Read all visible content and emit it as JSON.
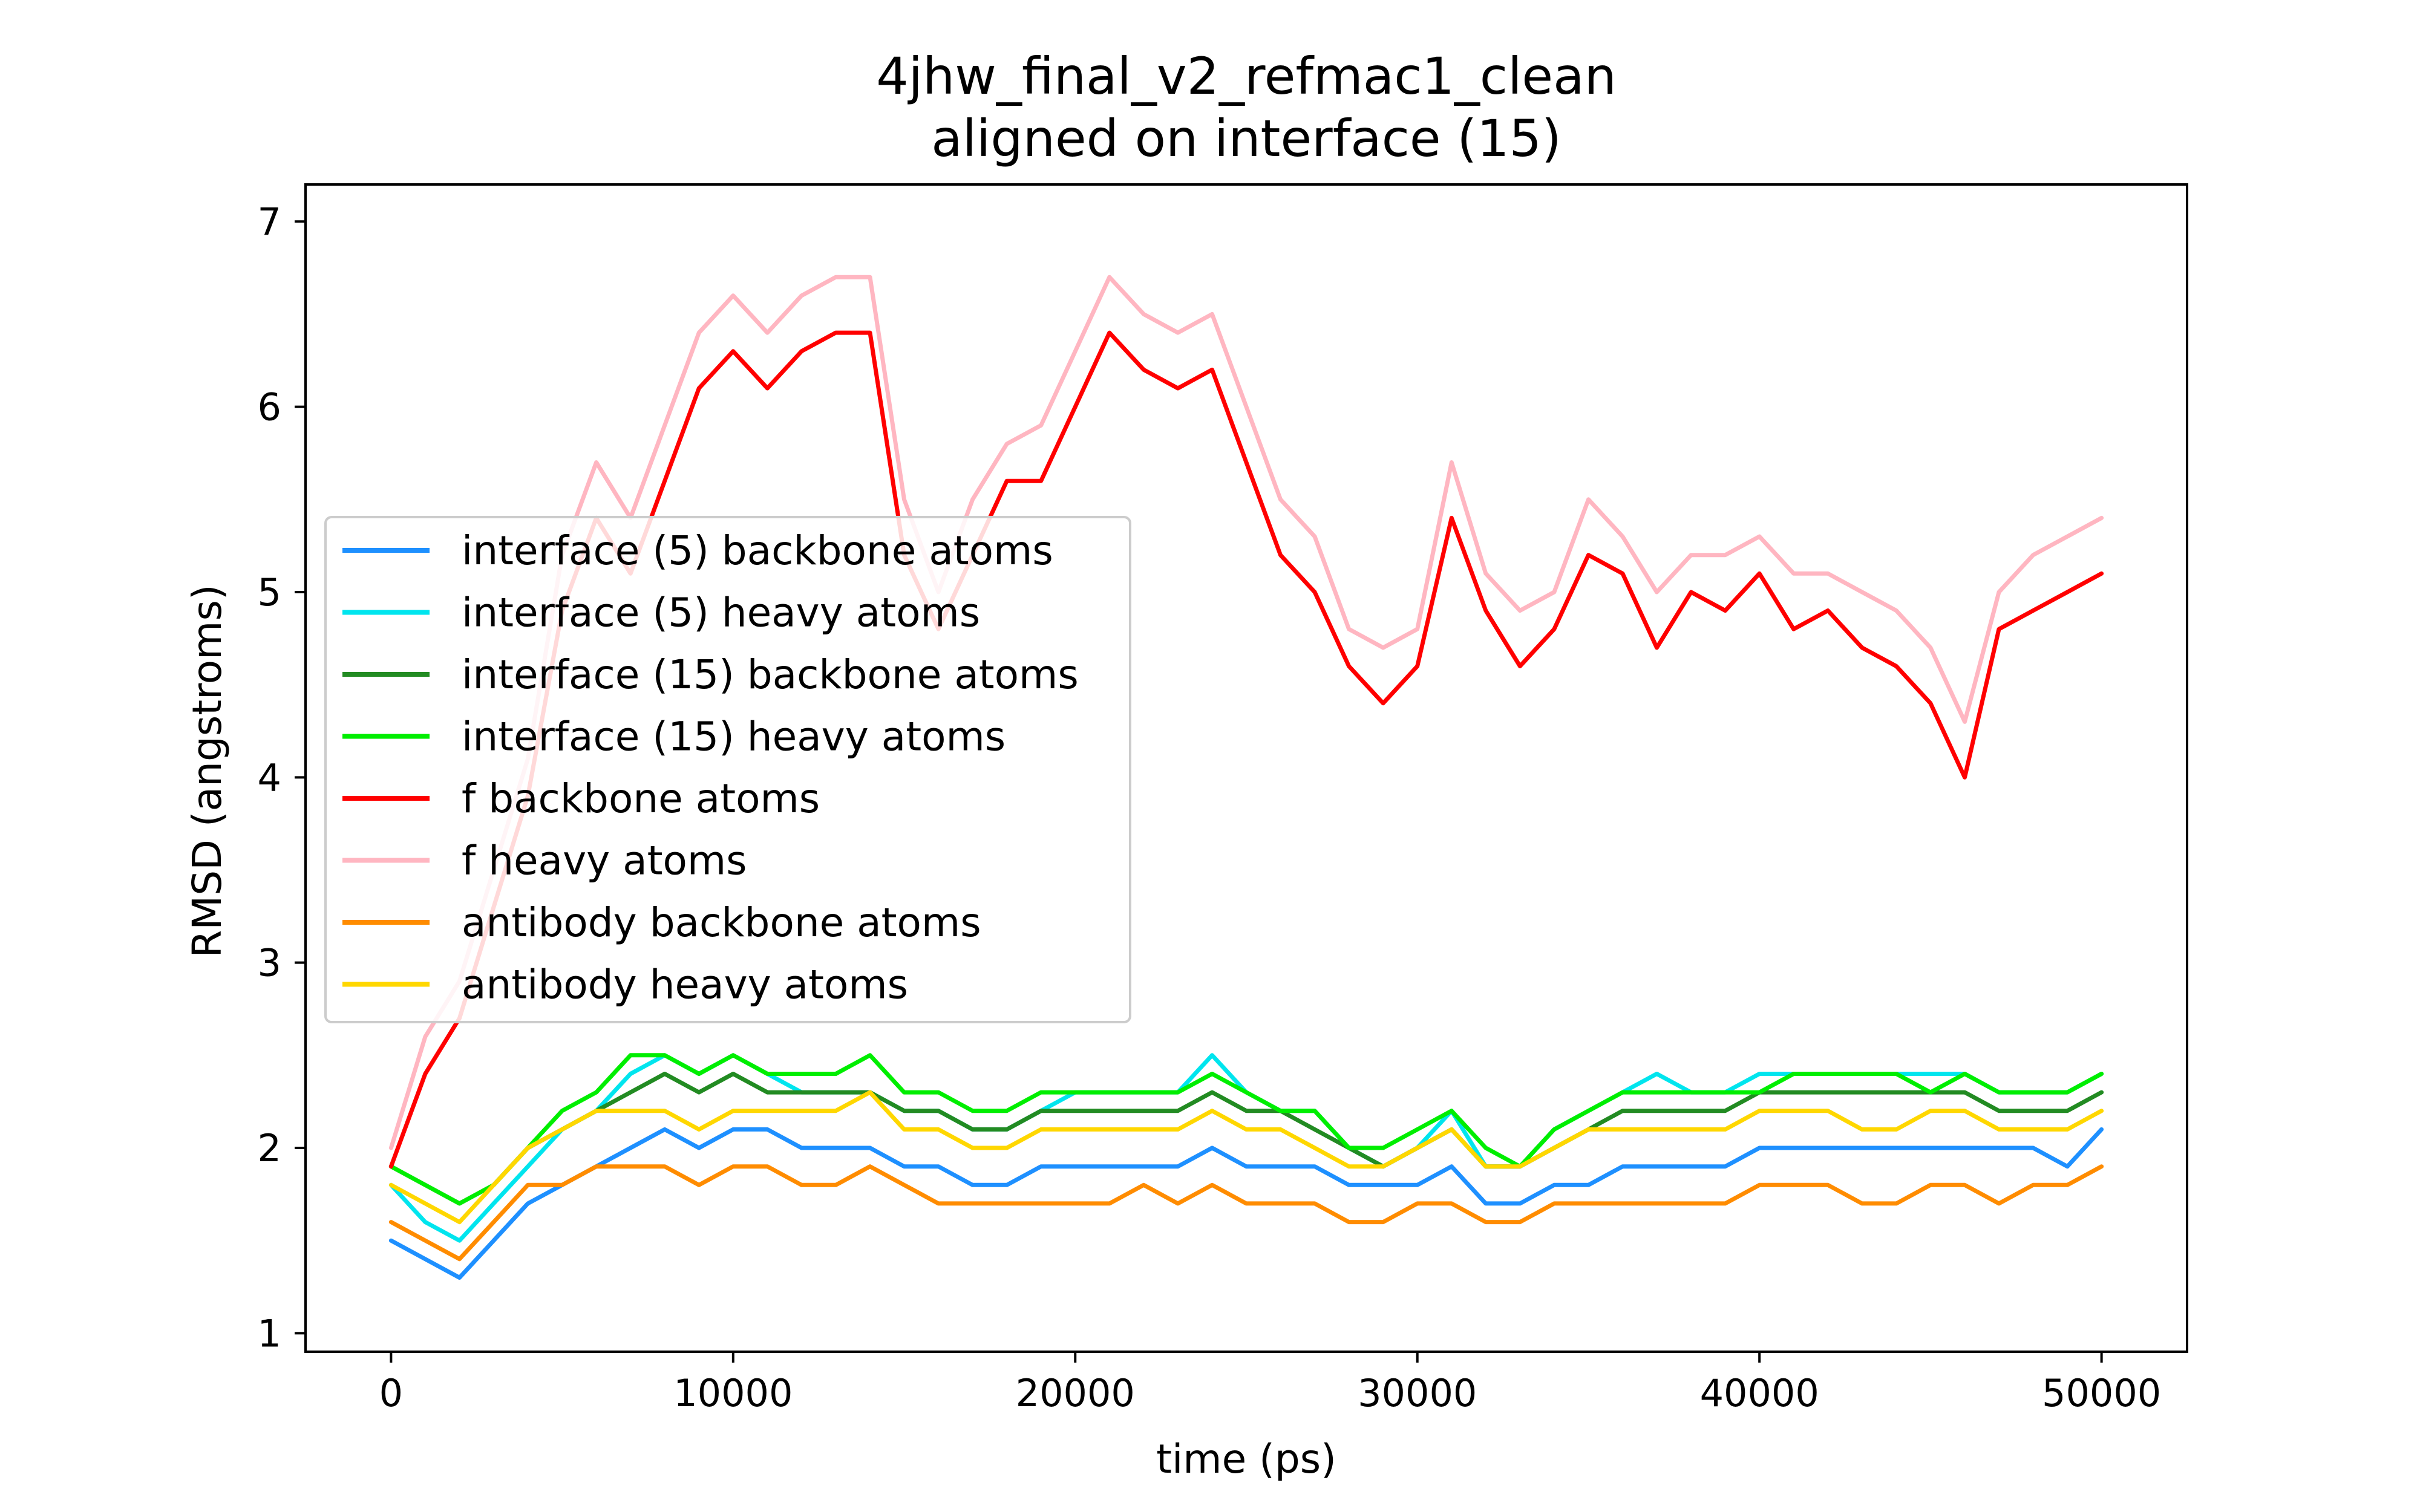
{
  "chart_data": {
    "type": "line",
    "title": "4jhw_final_v2_refmac1_clean",
    "subtitle": "aligned on interface (15)",
    "xlabel": "time (ps)",
    "ylabel": "RMSD (angstroms)",
    "xlim": [
      -2500,
      52500
    ],
    "ylim": [
      0.9,
      7.2
    ],
    "xticks": [
      0,
      10000,
      20000,
      30000,
      40000,
      50000
    ],
    "yticks": [
      1,
      2,
      3,
      4,
      5,
      6,
      7
    ],
    "grid": false,
    "legend_position": "center-left",
    "x": [
      0,
      1000,
      2000,
      3000,
      4000,
      5000,
      6000,
      7000,
      8000,
      9000,
      10000,
      11000,
      12000,
      13000,
      14000,
      15000,
      16000,
      17000,
      18000,
      19000,
      20000,
      21000,
      22000,
      23000,
      24000,
      25000,
      26000,
      27000,
      28000,
      29000,
      30000,
      31000,
      32000,
      33000,
      34000,
      35000,
      36000,
      37000,
      38000,
      39000,
      40000,
      41000,
      42000,
      43000,
      44000,
      45000,
      46000,
      47000,
      48000,
      49000,
      50000
    ],
    "series": [
      {
        "name": "interface (5) backbone atoms",
        "color": "#1e90ff",
        "values": [
          1.5,
          1.4,
          1.3,
          1.5,
          1.7,
          1.8,
          1.9,
          2.0,
          2.1,
          2.0,
          2.1,
          2.1,
          2.0,
          2.0,
          2.0,
          1.9,
          1.9,
          1.8,
          1.8,
          1.9,
          1.9,
          1.9,
          1.9,
          1.9,
          2.0,
          1.9,
          1.9,
          1.9,
          1.8,
          1.8,
          1.8,
          1.9,
          1.7,
          1.7,
          1.8,
          1.8,
          1.9,
          1.9,
          1.9,
          1.9,
          2.0,
          2.0,
          2.0,
          2.0,
          2.0,
          2.0,
          2.0,
          2.0,
          2.0,
          1.9,
          2.1
        ]
      },
      {
        "name": "interface (5) heavy atoms",
        "color": "#00e5ee",
        "values": [
          1.8,
          1.6,
          1.5,
          1.7,
          1.9,
          2.1,
          2.2,
          2.4,
          2.5,
          2.4,
          2.5,
          2.4,
          2.3,
          2.3,
          2.3,
          2.2,
          2.2,
          2.1,
          2.1,
          2.2,
          2.3,
          2.3,
          2.3,
          2.3,
          2.5,
          2.3,
          2.2,
          2.2,
          2.0,
          1.9,
          2.0,
          2.2,
          1.9,
          1.9,
          2.1,
          2.2,
          2.3,
          2.4,
          2.3,
          2.3,
          2.4,
          2.4,
          2.4,
          2.4,
          2.4,
          2.4,
          2.4,
          2.3,
          2.3,
          2.3,
          2.4
        ]
      },
      {
        "name": "interface (15) backbone atoms",
        "color": "#228b22",
        "values": [
          1.9,
          1.8,
          1.7,
          1.8,
          2.0,
          2.1,
          2.2,
          2.3,
          2.4,
          2.3,
          2.4,
          2.3,
          2.3,
          2.3,
          2.3,
          2.2,
          2.2,
          2.1,
          2.1,
          2.2,
          2.2,
          2.2,
          2.2,
          2.2,
          2.3,
          2.2,
          2.2,
          2.1,
          2.0,
          1.9,
          2.0,
          2.1,
          1.9,
          1.9,
          2.0,
          2.1,
          2.2,
          2.2,
          2.2,
          2.2,
          2.3,
          2.3,
          2.3,
          2.3,
          2.3,
          2.3,
          2.3,
          2.2,
          2.2,
          2.2,
          2.3
        ]
      },
      {
        "name": "interface (15) heavy atoms",
        "color": "#00ee00",
        "values": [
          1.9,
          1.8,
          1.7,
          1.8,
          2.0,
          2.2,
          2.3,
          2.5,
          2.5,
          2.4,
          2.5,
          2.4,
          2.4,
          2.4,
          2.5,
          2.3,
          2.3,
          2.2,
          2.2,
          2.3,
          2.3,
          2.3,
          2.3,
          2.3,
          2.4,
          2.3,
          2.2,
          2.2,
          2.0,
          2.0,
          2.1,
          2.2,
          2.0,
          1.9,
          2.1,
          2.2,
          2.3,
          2.3,
          2.3,
          2.3,
          2.3,
          2.4,
          2.4,
          2.4,
          2.4,
          2.3,
          2.4,
          2.3,
          2.3,
          2.3,
          2.4
        ]
      },
      {
        "name": "f backbone atoms",
        "color": "#ff0000",
        "values": [
          1.9,
          2.4,
          2.7,
          3.3,
          3.9,
          4.9,
          5.4,
          5.1,
          5.6,
          6.1,
          6.3,
          6.1,
          6.3,
          6.4,
          6.4,
          5.2,
          4.8,
          5.2,
          5.6,
          5.6,
          6.0,
          6.4,
          6.2,
          6.1,
          6.2,
          5.7,
          5.2,
          5.0,
          4.6,
          4.4,
          4.6,
          5.4,
          4.9,
          4.6,
          4.8,
          5.2,
          5.1,
          4.7,
          5.0,
          4.9,
          5.1,
          4.8,
          4.9,
          4.7,
          4.6,
          4.4,
          4.0,
          4.8,
          4.9,
          5.0,
          5.1
        ]
      },
      {
        "name": "f heavy atoms",
        "color": "#ffb6c1",
        "values": [
          2.0,
          2.6,
          2.9,
          3.5,
          4.1,
          5.2,
          5.7,
          5.4,
          5.9,
          6.4,
          6.6,
          6.4,
          6.6,
          6.7,
          6.7,
          5.5,
          5.0,
          5.5,
          5.8,
          5.9,
          6.3,
          6.7,
          6.5,
          6.4,
          6.5,
          6.0,
          5.5,
          5.3,
          4.8,
          4.7,
          4.8,
          5.7,
          5.1,
          4.9,
          5.0,
          5.5,
          5.3,
          5.0,
          5.2,
          5.2,
          5.3,
          5.1,
          5.1,
          5.0,
          4.9,
          4.7,
          4.3,
          5.0,
          5.2,
          5.3,
          5.4
        ]
      },
      {
        "name": "antibody backbone atoms",
        "color": "#ff8c00",
        "values": [
          1.6,
          1.5,
          1.4,
          1.6,
          1.8,
          1.8,
          1.9,
          1.9,
          1.9,
          1.8,
          1.9,
          1.9,
          1.8,
          1.8,
          1.9,
          1.8,
          1.7,
          1.7,
          1.7,
          1.7,
          1.7,
          1.7,
          1.8,
          1.7,
          1.8,
          1.7,
          1.7,
          1.7,
          1.6,
          1.6,
          1.7,
          1.7,
          1.6,
          1.6,
          1.7,
          1.7,
          1.7,
          1.7,
          1.7,
          1.7,
          1.8,
          1.8,
          1.8,
          1.7,
          1.7,
          1.8,
          1.8,
          1.7,
          1.8,
          1.8,
          1.9
        ]
      },
      {
        "name": "antibody heavy atoms",
        "color": "#ffd700",
        "values": [
          1.8,
          1.7,
          1.6,
          1.8,
          2.0,
          2.1,
          2.2,
          2.2,
          2.2,
          2.1,
          2.2,
          2.2,
          2.2,
          2.2,
          2.3,
          2.1,
          2.1,
          2.0,
          2.0,
          2.1,
          2.1,
          2.1,
          2.1,
          2.1,
          2.2,
          2.1,
          2.1,
          2.0,
          1.9,
          1.9,
          2.0,
          2.1,
          1.9,
          1.9,
          2.0,
          2.1,
          2.1,
          2.1,
          2.1,
          2.1,
          2.2,
          2.2,
          2.2,
          2.1,
          2.1,
          2.2,
          2.2,
          2.1,
          2.1,
          2.1,
          2.2
        ]
      }
    ]
  }
}
